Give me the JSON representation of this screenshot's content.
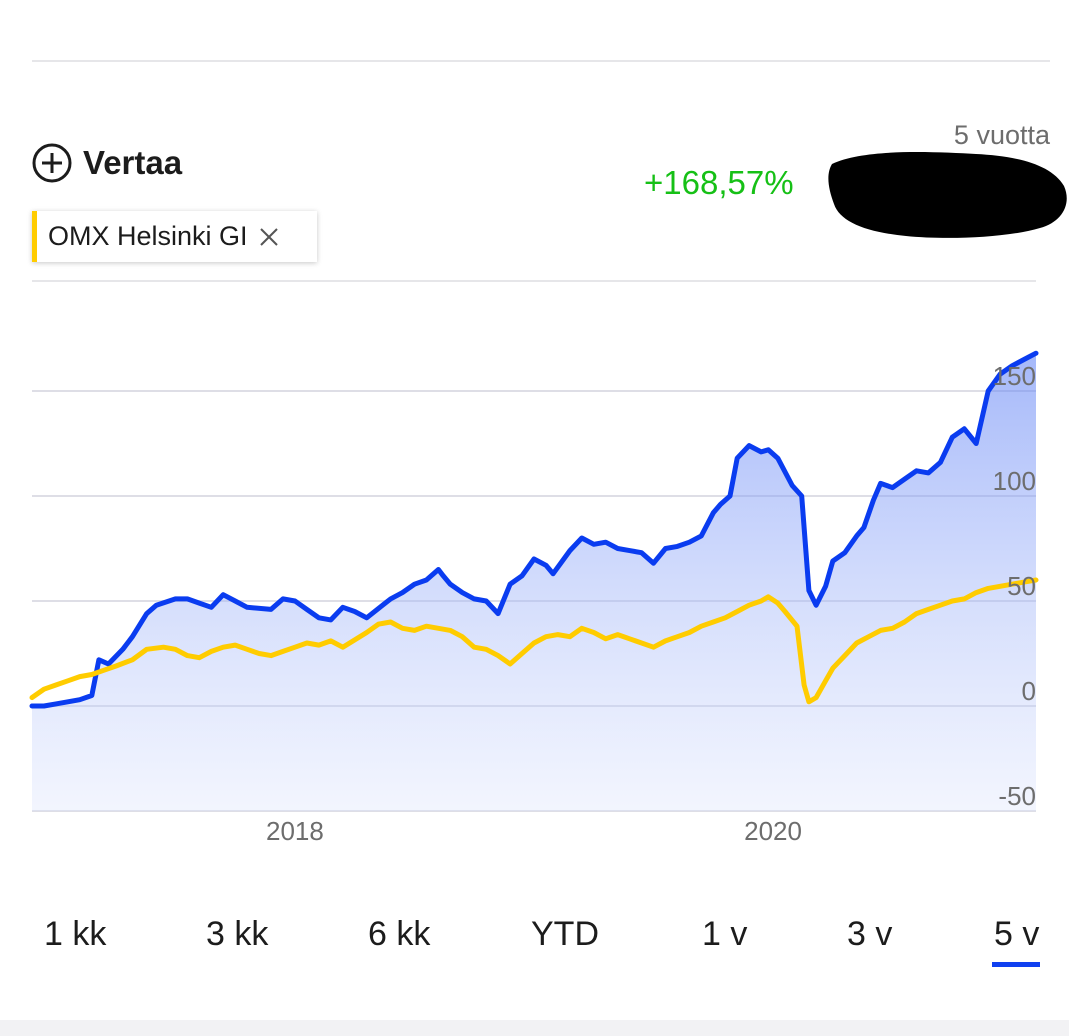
{
  "compare": {
    "label": "Vertaa",
    "icon": "plus-circle-icon"
  },
  "comparison_chip": {
    "name": "OMX Helsinki GI",
    "color": "#ffcc00",
    "close_icon": "close-icon"
  },
  "summary": {
    "period_label": "5 vuotta",
    "change": "+168,57%",
    "change_color": "#16c016"
  },
  "period_tabs": {
    "items": [
      "1 kk",
      "3 kk",
      "6 kk",
      "YTD",
      "1 v",
      "3 v",
      "5 v"
    ],
    "active": "5 v"
  },
  "chart_data": {
    "type": "area",
    "x_axis": {
      "ticks": [
        "2018",
        "2020"
      ],
      "range": [
        2016.9,
        2021.1
      ]
    },
    "y_axis": {
      "ticks": [
        "150",
        "100",
        "50",
        "0",
        "-50"
      ],
      "range": [
        -50,
        170
      ],
      "position": "right"
    },
    "grid": true,
    "series": [
      {
        "color": "#0a3cf0",
        "fill": true,
        "points": [
          [
            2016.9,
            0
          ],
          [
            2016.95,
            0
          ],
          [
            2017.0,
            1
          ],
          [
            2017.05,
            2
          ],
          [
            2017.1,
            3
          ],
          [
            2017.15,
            5
          ],
          [
            2017.18,
            22
          ],
          [
            2017.22,
            20
          ],
          [
            2017.28,
            27
          ],
          [
            2017.32,
            33
          ],
          [
            2017.38,
            44
          ],
          [
            2017.42,
            48
          ],
          [
            2017.5,
            51
          ],
          [
            2017.55,
            51
          ],
          [
            2017.6,
            49
          ],
          [
            2017.65,
            47
          ],
          [
            2017.7,
            53
          ],
          [
            2017.75,
            50
          ],
          [
            2017.8,
            47
          ],
          [
            2017.9,
            46
          ],
          [
            2017.95,
            51
          ],
          [
            2018.0,
            50
          ],
          [
            2018.05,
            46
          ],
          [
            2018.1,
            42
          ],
          [
            2018.15,
            41
          ],
          [
            2018.2,
            47
          ],
          [
            2018.25,
            45
          ],
          [
            2018.3,
            42
          ],
          [
            2018.4,
            51
          ],
          [
            2018.45,
            54
          ],
          [
            2018.5,
            58
          ],
          [
            2018.55,
            60
          ],
          [
            2018.6,
            65
          ],
          [
            2018.62,
            62
          ],
          [
            2018.65,
            58
          ],
          [
            2018.7,
            54
          ],
          [
            2018.75,
            51
          ],
          [
            2018.8,
            50
          ],
          [
            2018.85,
            44
          ],
          [
            2018.9,
            58
          ],
          [
            2018.95,
            62
          ],
          [
            2019.0,
            70
          ],
          [
            2019.05,
            67
          ],
          [
            2019.08,
            63
          ],
          [
            2019.15,
            74
          ],
          [
            2019.2,
            80
          ],
          [
            2019.25,
            77
          ],
          [
            2019.3,
            78
          ],
          [
            2019.35,
            75
          ],
          [
            2019.4,
            74
          ],
          [
            2019.45,
            73
          ],
          [
            2019.5,
            68
          ],
          [
            2019.55,
            75
          ],
          [
            2019.6,
            76
          ],
          [
            2019.65,
            78
          ],
          [
            2019.7,
            81
          ],
          [
            2019.75,
            92
          ],
          [
            2019.78,
            96
          ],
          [
            2019.82,
            100
          ],
          [
            2019.85,
            118
          ],
          [
            2019.9,
            124
          ],
          [
            2019.95,
            121
          ],
          [
            2019.98,
            122
          ],
          [
            2020.02,
            118
          ],
          [
            2020.08,
            105
          ],
          [
            2020.12,
            100
          ],
          [
            2020.15,
            55
          ],
          [
            2020.18,
            48
          ],
          [
            2020.22,
            57
          ],
          [
            2020.25,
            69
          ],
          [
            2020.3,
            73
          ],
          [
            2020.35,
            81
          ],
          [
            2020.38,
            85
          ],
          [
            2020.42,
            98
          ],
          [
            2020.45,
            106
          ],
          [
            2020.5,
            104
          ],
          [
            2020.55,
            108
          ],
          [
            2020.6,
            112
          ],
          [
            2020.65,
            111
          ],
          [
            2020.7,
            116
          ],
          [
            2020.75,
            128
          ],
          [
            2020.8,
            132
          ],
          [
            2020.85,
            125
          ],
          [
            2020.9,
            150
          ],
          [
            2020.95,
            158
          ],
          [
            2021.0,
            162
          ],
          [
            2021.05,
            165
          ],
          [
            2021.1,
            168
          ]
        ]
      },
      {
        "color": "#ffcc00",
        "fill": false,
        "points": [
          [
            2016.9,
            4
          ],
          [
            2016.95,
            8
          ],
          [
            2017.0,
            10
          ],
          [
            2017.05,
            12
          ],
          [
            2017.1,
            14
          ],
          [
            2017.15,
            15
          ],
          [
            2017.2,
            17
          ],
          [
            2017.25,
            19
          ],
          [
            2017.32,
            22
          ],
          [
            2017.38,
            27
          ],
          [
            2017.45,
            28
          ],
          [
            2017.5,
            27
          ],
          [
            2017.55,
            24
          ],
          [
            2017.6,
            23
          ],
          [
            2017.65,
            26
          ],
          [
            2017.7,
            28
          ],
          [
            2017.75,
            29
          ],
          [
            2017.8,
            27
          ],
          [
            2017.85,
            25
          ],
          [
            2017.9,
            24
          ],
          [
            2017.95,
            26
          ],
          [
            2018.0,
            28
          ],
          [
            2018.05,
            30
          ],
          [
            2018.1,
            29
          ],
          [
            2018.15,
            31
          ],
          [
            2018.2,
            28
          ],
          [
            2018.3,
            35
          ],
          [
            2018.35,
            39
          ],
          [
            2018.4,
            40
          ],
          [
            2018.45,
            37
          ],
          [
            2018.5,
            36
          ],
          [
            2018.55,
            38
          ],
          [
            2018.6,
            37
          ],
          [
            2018.65,
            36
          ],
          [
            2018.7,
            33
          ],
          [
            2018.75,
            28
          ],
          [
            2018.8,
            27
          ],
          [
            2018.85,
            24
          ],
          [
            2018.9,
            20
          ],
          [
            2018.95,
            25
          ],
          [
            2019.0,
            30
          ],
          [
            2019.05,
            33
          ],
          [
            2019.1,
            34
          ],
          [
            2019.15,
            33
          ],
          [
            2019.2,
            37
          ],
          [
            2019.25,
            35
          ],
          [
            2019.3,
            32
          ],
          [
            2019.35,
            34
          ],
          [
            2019.4,
            32
          ],
          [
            2019.45,
            30
          ],
          [
            2019.5,
            28
          ],
          [
            2019.55,
            31
          ],
          [
            2019.6,
            33
          ],
          [
            2019.65,
            35
          ],
          [
            2019.7,
            38
          ],
          [
            2019.75,
            40
          ],
          [
            2019.8,
            42
          ],
          [
            2019.85,
            45
          ],
          [
            2019.9,
            48
          ],
          [
            2019.95,
            50
          ],
          [
            2019.98,
            52
          ],
          [
            2020.02,
            49
          ],
          [
            2020.05,
            45
          ],
          [
            2020.1,
            38
          ],
          [
            2020.13,
            10
          ],
          [
            2020.15,
            2
          ],
          [
            2020.18,
            4
          ],
          [
            2020.22,
            12
          ],
          [
            2020.25,
            18
          ],
          [
            2020.3,
            24
          ],
          [
            2020.35,
            30
          ],
          [
            2020.4,
            33
          ],
          [
            2020.45,
            36
          ],
          [
            2020.5,
            37
          ],
          [
            2020.55,
            40
          ],
          [
            2020.6,
            44
          ],
          [
            2020.65,
            46
          ],
          [
            2020.7,
            48
          ],
          [
            2020.75,
            50
          ],
          [
            2020.8,
            51
          ],
          [
            2020.85,
            54
          ],
          [
            2020.9,
            56
          ],
          [
            2020.95,
            57
          ],
          [
            2021.0,
            58
          ],
          [
            2021.05,
            59
          ],
          [
            2021.1,
            60
          ]
        ]
      }
    ]
  }
}
